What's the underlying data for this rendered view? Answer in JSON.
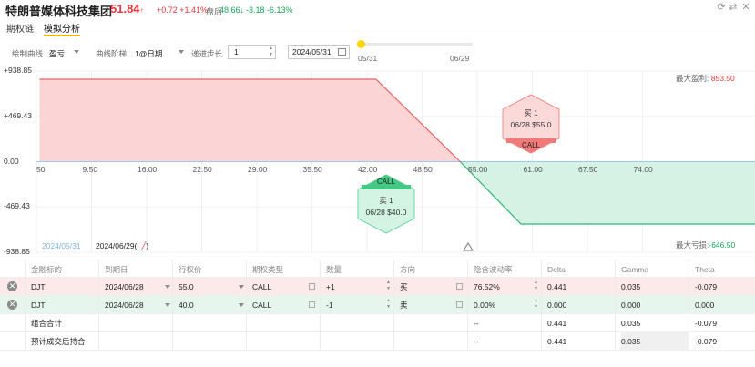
{
  "header": {
    "name": "特朗普媒体科技集团",
    "price": "51.84",
    "price_arrow": "↑",
    "change": "+0.72 +1.41%",
    "after_label": "盘后",
    "after_price": "48.66",
    "after_arrow": "↓",
    "after_change": "-3.18 -6.13%"
  },
  "tabs": [
    {
      "label": "期权链"
    },
    {
      "label": "模拟分析"
    }
  ],
  "controls": {
    "curve_label": "绘制曲线",
    "curve_value": "盈亏",
    "step_label": "曲线阶梯",
    "step_value": "1@日期",
    "advance_label": "递进步长",
    "advance_value": "1",
    "date_value": "2024/05/31",
    "slider_start": "05/31",
    "slider_end": "06/29"
  },
  "chart_data": {
    "type": "area",
    "y_ticks": [
      "+938.85",
      "+469.43",
      "0.00",
      "-469.43",
      "-938.85"
    ],
    "ylim": [
      -938.85,
      938.85
    ],
    "x_ticks": [
      "50",
      "9.50",
      "16.00",
      "22.50",
      "29.00",
      "35.50",
      "42.00",
      "48.50",
      "55.00",
      "61.00",
      "67.50",
      "74.00"
    ],
    "series": [
      {
        "name": "2024/06/29",
        "x": [
          3.5,
          39.5,
          48.5,
          55.0,
          80.5
        ],
        "y": [
          853.5,
          853.5,
          0.0,
          -646.5,
          -646.5
        ]
      }
    ],
    "max_profit_label": "最大盈利:",
    "max_profit": "853.50",
    "max_loss_label": "最大亏损:",
    "max_loss": "-646.50",
    "legend_date_1": "2024/05/31",
    "legend_date_2": "2024/06/29(",
    "legend_date_2_suffix": ")",
    "markers": [
      {
        "side": "买 1",
        "detail": "06/28 $55.0",
        "type": "CALL",
        "color": "#ff9e9e"
      },
      {
        "side": "卖 1",
        "detail": "06/28 $40.0",
        "type": "CALL",
        "color": "#5cd39a"
      }
    ]
  },
  "table": {
    "headers": [
      "金融标的",
      "到期日",
      "行权价",
      "期权类型",
      "数量",
      "方向",
      "隐含波动率",
      "Delta",
      "Gamma",
      "Theta"
    ],
    "rows": [
      {
        "symbol": "DJT",
        "expiry": "2024/06/28",
        "strike": "55.0",
        "type": "CALL",
        "qty": "+1",
        "dir": "买",
        "iv": "76.52%",
        "delta": "0.441",
        "gamma": "0.035",
        "theta": "-0.079",
        "bg": "#fce9e9"
      },
      {
        "symbol": "DJT",
        "expiry": "2024/06/28",
        "strike": "40.0",
        "type": "CALL",
        "qty": "-1",
        "dir": "卖",
        "iv": "0.00%",
        "delta": "0.000",
        "gamma": "0.000",
        "theta": "0.000",
        "bg": "#e6f6ee"
      }
    ],
    "summary": [
      {
        "label": "组合合计",
        "iv": "--",
        "delta": "0.441",
        "gamma": "0.035",
        "theta": "-0.079"
      },
      {
        "label": "预计成交后持合",
        "iv": "--",
        "delta": "0.441",
        "gamma": "0.035",
        "theta": "-0.079"
      }
    ]
  },
  "colors": {
    "profit_fill": "#fbd5d5",
    "profit_line": "#e9605f",
    "loss_fill": "#d6f2e4",
    "loss_line": "#2fb56f",
    "zero_line": "#9ec9ea"
  }
}
